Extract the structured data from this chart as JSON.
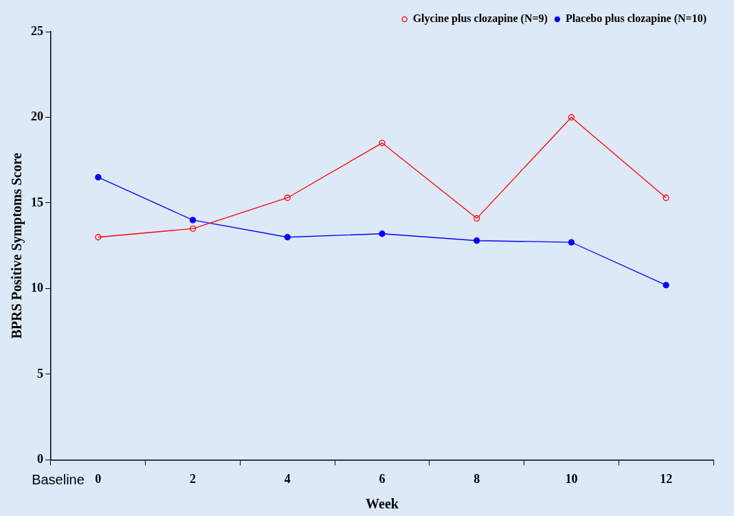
{
  "chart_data": {
    "type": "line",
    "xlabel": "Week",
    "ylabel": "BPRS Positive Symptoms Score",
    "categories": [
      "0",
      "2",
      "4",
      "6",
      "8",
      "10",
      "12"
    ],
    "series": [
      {
        "name": "Glycine plus clozapine (N=9)",
        "color": "#ff0000",
        "marker": "circle_open",
        "values": [
          13.0,
          13.5,
          15.3,
          18.5,
          14.1,
          20.0,
          15.3
        ]
      },
      {
        "name": "Placebo plus clozapine (N=10)",
        "color": "#0000ff",
        "marker": "circle",
        "values": [
          16.5,
          14.0,
          13.0,
          13.2,
          12.8,
          12.7,
          10.2
        ]
      }
    ],
    "ylim": [
      0,
      25
    ],
    "yticks": [
      0,
      5,
      10,
      15,
      20,
      25
    ],
    "grid": false,
    "legend": "top right",
    "annotations": [
      "Baseline"
    ]
  }
}
